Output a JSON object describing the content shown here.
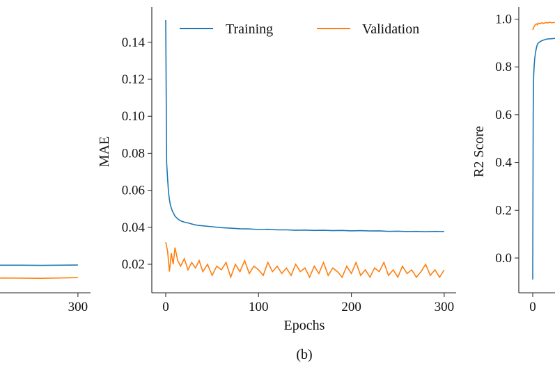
{
  "colors": {
    "training": "#1f77b4",
    "validation": "#ff7f0e"
  },
  "caption": "(b)",
  "chart_data": [
    {
      "type": "line",
      "partial": "left (cropped)",
      "xticks": [
        300
      ],
      "ylim": [
        0.0046,
        0.159
      ],
      "xlim": [
        -15,
        315
      ],
      "series": [
        {
          "name": "Training",
          "x": [
            0,
            20,
            40,
            60,
            80,
            100,
            120,
            140,
            160,
            180,
            200,
            220,
            240,
            260,
            280,
            300
          ],
          "values": [
            0.0195,
            0.0194,
            0.0196,
            0.0195,
            0.0194,
            0.0196,
            0.0195,
            0.0194,
            0.0195,
            0.0196,
            0.0194,
            0.0195,
            0.0195,
            0.0194,
            0.0195,
            0.0196
          ]
        },
        {
          "name": "Validation",
          "x": [
            0,
            20,
            40,
            60,
            80,
            100,
            120,
            140,
            160,
            180,
            200,
            220,
            240,
            260,
            280,
            300
          ],
          "values": [
            0.0125,
            0.0127,
            0.0124,
            0.0129,
            0.0125,
            0.0126,
            0.0124,
            0.0131,
            0.0125,
            0.0127,
            0.0124,
            0.0126,
            0.0125,
            0.0124,
            0.0126,
            0.0128
          ]
        }
      ]
    },
    {
      "type": "line",
      "xlabel": "Epochs",
      "ylabel": "MAE",
      "xticks": [
        0,
        100,
        200,
        300
      ],
      "yticks": [
        0.02,
        0.04,
        0.06,
        0.08,
        0.1,
        0.12,
        0.14
      ],
      "ytick_labels": [
        "0.02",
        "0.04",
        "0.06",
        "0.08",
        "0.10",
        "0.12",
        "0.14"
      ],
      "xlim": [
        -15,
        313
      ],
      "ylim": [
        0.0046,
        0.159
      ],
      "legend": "top",
      "series": [
        {
          "name": "Training",
          "x": [
            0,
            1,
            2,
            3,
            4,
            5,
            7,
            10,
            13,
            16,
            20,
            25,
            30,
            35,
            40,
            50,
            60,
            70,
            80,
            90,
            100,
            110,
            120,
            130,
            140,
            150,
            160,
            170,
            180,
            190,
            200,
            210,
            220,
            230,
            240,
            250,
            260,
            270,
            280,
            290,
            300
          ],
          "values": [
            0.152,
            0.075,
            0.066,
            0.059,
            0.055,
            0.052,
            0.049,
            0.046,
            0.0445,
            0.0435,
            0.0428,
            0.0422,
            0.0415,
            0.041,
            0.0408,
            0.0403,
            0.0398,
            0.0395,
            0.0392,
            0.0391,
            0.0388,
            0.0389,
            0.0386,
            0.0386,
            0.0384,
            0.0385,
            0.0383,
            0.0384,
            0.0382,
            0.0383,
            0.0381,
            0.0382,
            0.038,
            0.0381,
            0.0378,
            0.0379,
            0.0377,
            0.0378,
            0.0376,
            0.0378,
            0.0377
          ]
        },
        {
          "name": "Validation",
          "x": [
            0,
            2,
            4,
            6,
            8,
            10,
            13,
            16,
            20,
            24,
            28,
            32,
            36,
            40,
            45,
            50,
            55,
            60,
            65,
            70,
            75,
            80,
            85,
            90,
            95,
            100,
            105,
            110,
            115,
            120,
            125,
            130,
            135,
            140,
            145,
            150,
            155,
            160,
            165,
            170,
            175,
            180,
            185,
            190,
            195,
            200,
            205,
            210,
            215,
            220,
            225,
            230,
            235,
            240,
            245,
            250,
            255,
            260,
            265,
            270,
            275,
            280,
            285,
            290,
            295,
            300
          ],
          "values": [
            0.032,
            0.027,
            0.016,
            0.026,
            0.02,
            0.029,
            0.022,
            0.019,
            0.023,
            0.017,
            0.021,
            0.018,
            0.022,
            0.016,
            0.02,
            0.014,
            0.019,
            0.017,
            0.021,
            0.013,
            0.02,
            0.016,
            0.022,
            0.015,
            0.019,
            0.017,
            0.014,
            0.021,
            0.016,
            0.019,
            0.015,
            0.018,
            0.014,
            0.02,
            0.016,
            0.018,
            0.013,
            0.019,
            0.015,
            0.021,
            0.014,
            0.018,
            0.016,
            0.013,
            0.019,
            0.015,
            0.021,
            0.014,
            0.017,
            0.013,
            0.018,
            0.016,
            0.021,
            0.014,
            0.017,
            0.013,
            0.019,
            0.015,
            0.017,
            0.013,
            0.016,
            0.02,
            0.014,
            0.017,
            0.013,
            0.017
          ]
        }
      ]
    },
    {
      "type": "line",
      "partial": "right (cropped)",
      "ylabel": "R2 Score",
      "xticks": [
        0
      ],
      "yticks": [
        0.0,
        0.2,
        0.4,
        0.6,
        0.8,
        1.0
      ],
      "ytick_labels": [
        "0.0",
        "0.2",
        "0.4",
        "0.6",
        "0.8",
        "1.0"
      ],
      "ylim": [
        -0.146,
        1.05
      ],
      "series": [
        {
          "name": "Training",
          "x": [
            0,
            0.5,
            1,
            1.5,
            2,
            3,
            4,
            5,
            6,
            8,
            10,
            13,
            16,
            20,
            25
          ],
          "values": [
            -0.09,
            0.6,
            0.76,
            0.8,
            0.83,
            0.86,
            0.88,
            0.895,
            0.9,
            0.906,
            0.91,
            0.914,
            0.917,
            0.918,
            0.92
          ]
        },
        {
          "name": "Validation",
          "x": [
            0,
            1,
            2,
            3,
            4,
            5,
            6,
            8,
            10,
            12,
            14,
            16,
            18,
            20,
            25
          ],
          "values": [
            0.955,
            0.965,
            0.972,
            0.978,
            0.98,
            0.976,
            0.983,
            0.981,
            0.985,
            0.982,
            0.986,
            0.984,
            0.987,
            0.985,
            0.986
          ]
        }
      ]
    }
  ]
}
